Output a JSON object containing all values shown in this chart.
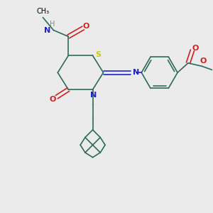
{
  "bg_color": "#ebebeb",
  "bond_color": "#2d6b5a",
  "S_color": "#cccc00",
  "N_color": "#2222cc",
  "O_color": "#cc2222",
  "H_color": "#888888",
  "line_width": 1.2,
  "figsize": [
    3.0,
    3.0
  ],
  "dpi": 100,
  "xlim": [
    0,
    10
  ],
  "ylim": [
    0,
    10
  ]
}
